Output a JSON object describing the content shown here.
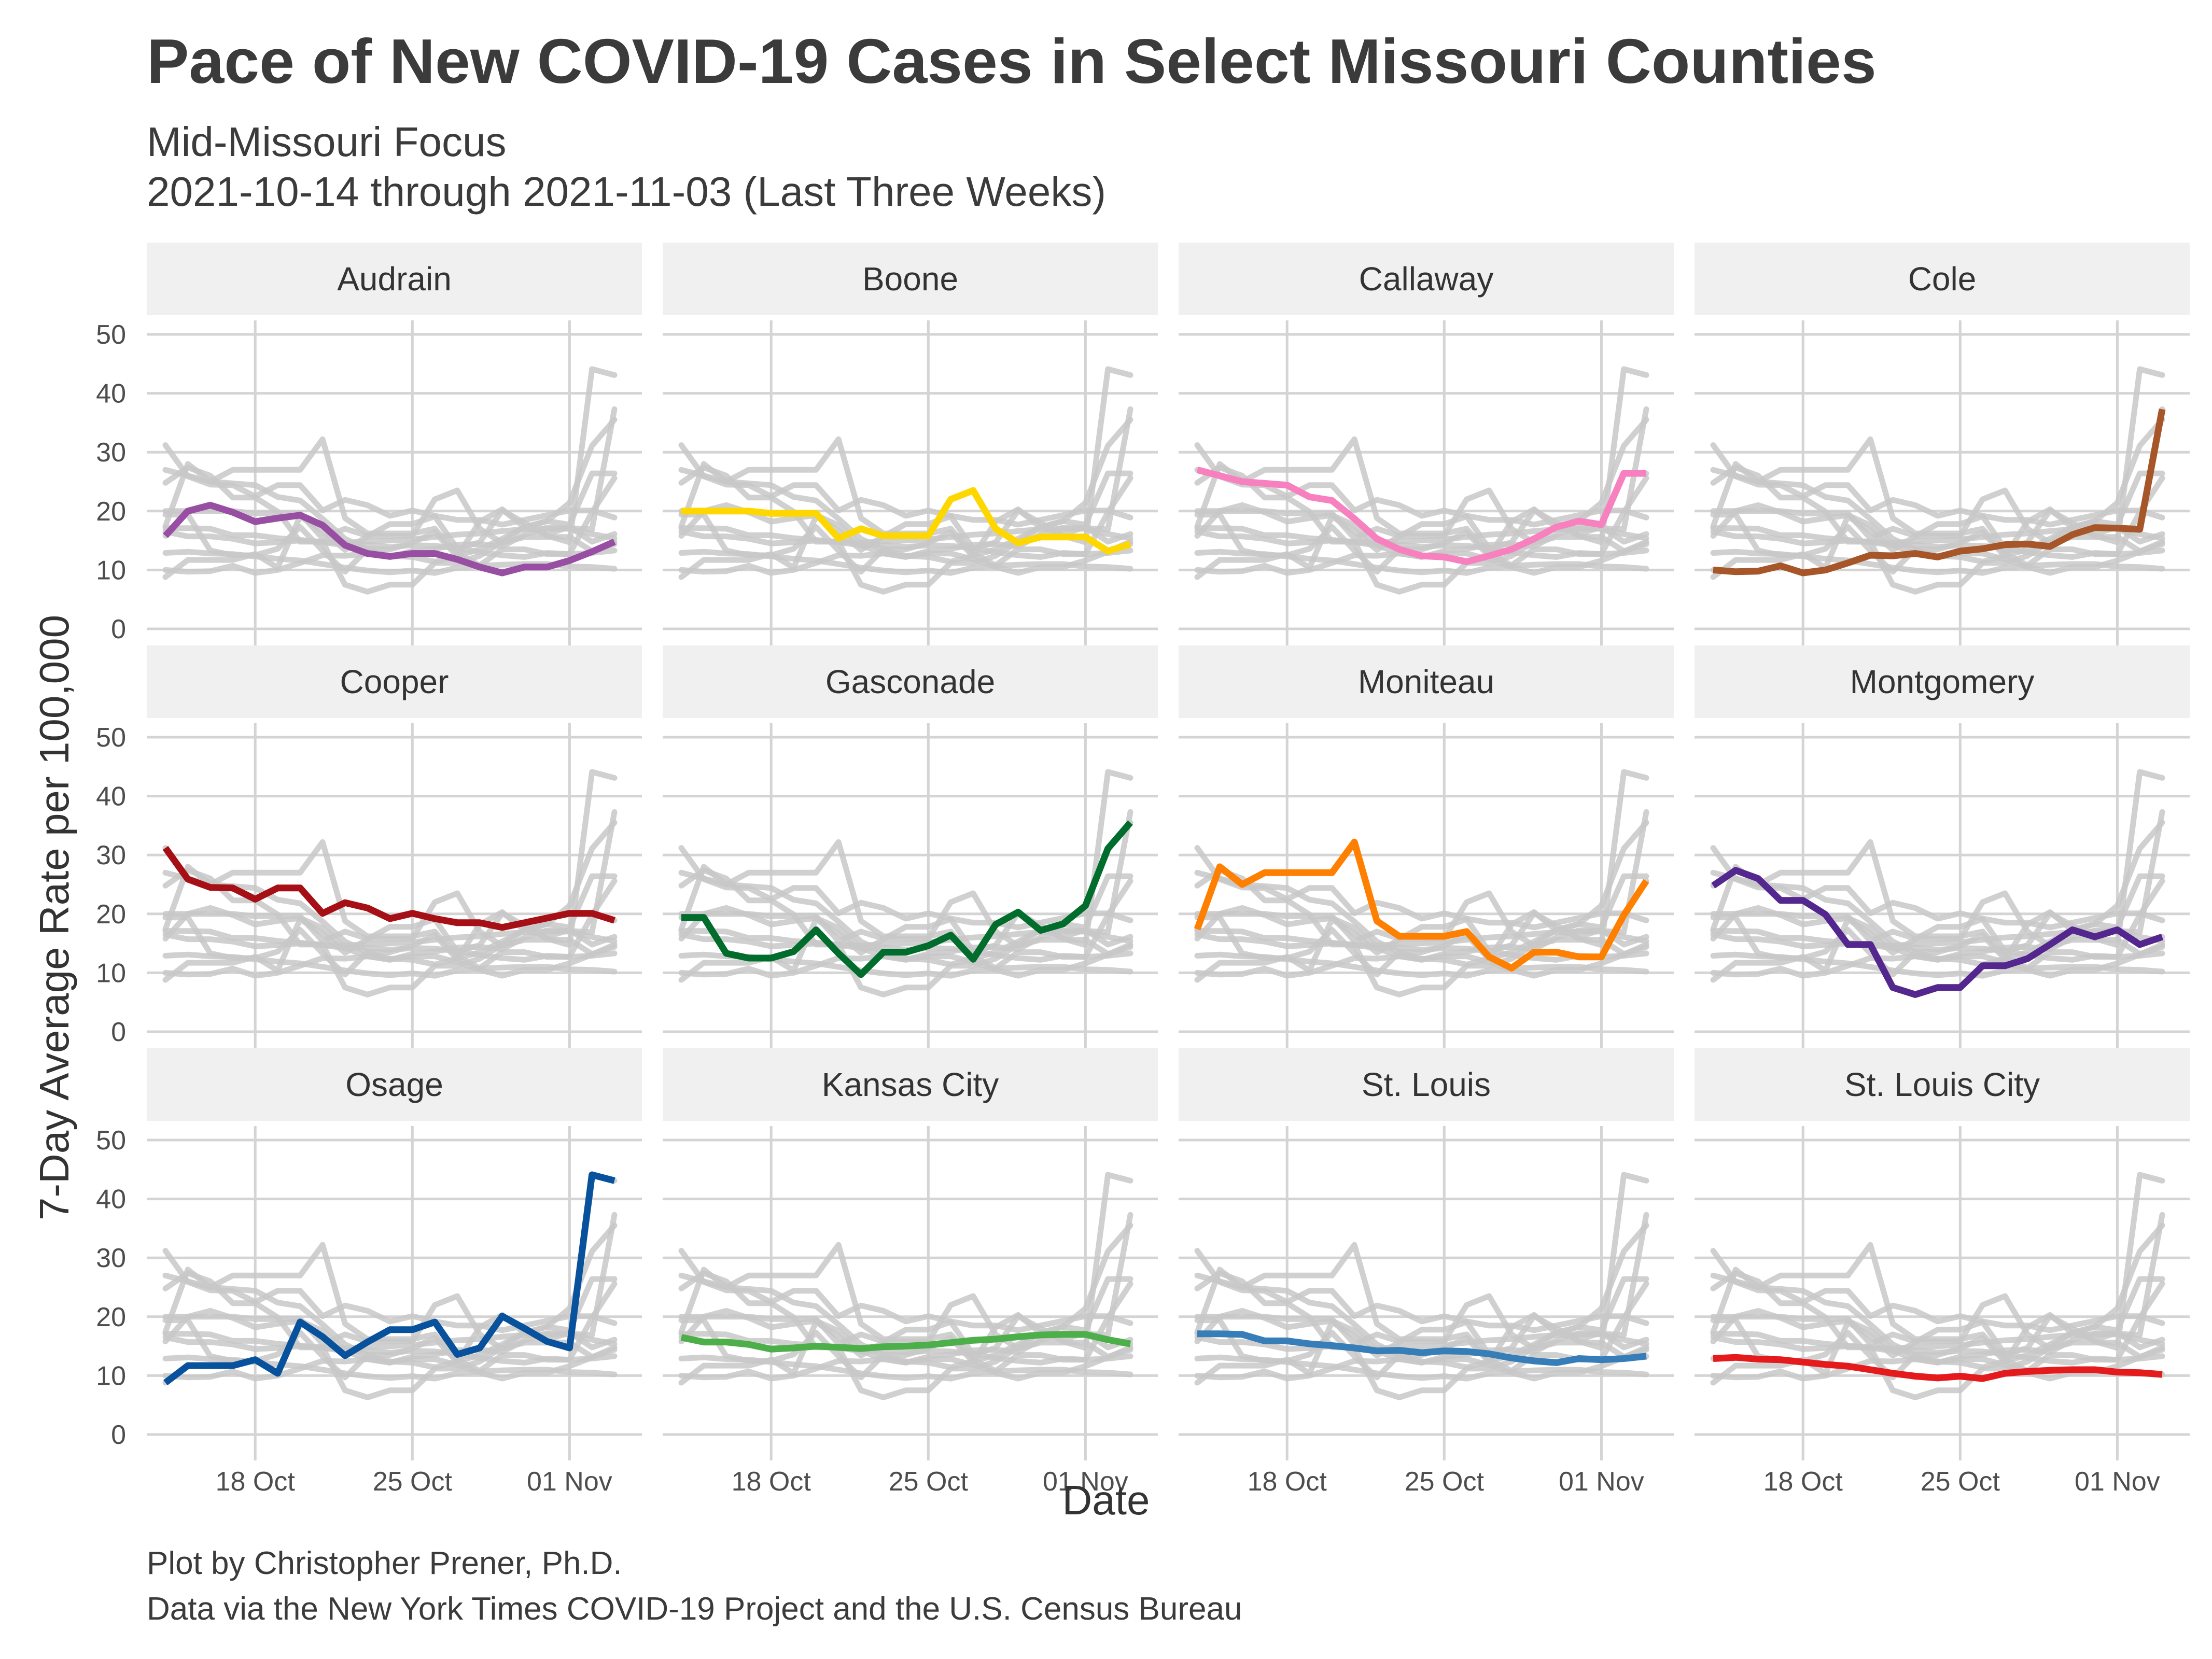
{
  "title": "Pace of New COVID-19 Cases in Select Missouri Counties",
  "subtitle": [
    "Mid-Missouri Focus",
    "2021-10-14 through 2021-11-03 (Last Three Weeks)"
  ],
  "caption": [
    "Plot by Christopher Prener, Ph.D.",
    "Data via the New York Times COVID-19 Project and the U.S. Census Bureau"
  ],
  "chart_data": {
    "type": "line",
    "facets": "small multiples, 3 rows x 4 columns, shared axes; each panel highlights one county in color over gray lines of all counties",
    "xlabel": "Date",
    "ylabel": "7-Day Average Rate per 100,000",
    "x": [
      "2021-10-14",
      "2021-10-15",
      "2021-10-16",
      "2021-10-17",
      "2021-10-18",
      "2021-10-19",
      "2021-10-20",
      "2021-10-21",
      "2021-10-22",
      "2021-10-23",
      "2021-10-24",
      "2021-10-25",
      "2021-10-26",
      "2021-10-27",
      "2021-10-28",
      "2021-10-29",
      "2021-10-30",
      "2021-10-31",
      "2021-11-01",
      "2021-11-02",
      "2021-11-03"
    ],
    "xticks": [
      "18 Oct",
      "25 Oct",
      "01 Nov"
    ],
    "xtick_dates": [
      "2021-10-18",
      "2021-10-25",
      "2021-11-01"
    ],
    "ylim": [
      0,
      50
    ],
    "yticks": [
      0,
      10,
      20,
      30,
      40,
      50
    ],
    "grid": true,
    "background_series_color": "#c8c8c8",
    "series": [
      {
        "name": "Audrain",
        "color": "#984ea3",
        "values": [
          15.8,
          20.0,
          21.0,
          19.8,
          18.2,
          18.8,
          19.3,
          17.6,
          14.2,
          12.8,
          12.3,
          12.8,
          12.8,
          11.8,
          10.5,
          9.5,
          10.5,
          10.5,
          11.6,
          13.1,
          14.8
        ]
      },
      {
        "name": "Boone",
        "color": "#ffd700",
        "values": [
          20.0,
          20.0,
          20.0,
          20.0,
          19.6,
          19.6,
          19.6,
          15.4,
          17.0,
          15.8,
          15.8,
          15.8,
          22.0,
          23.5,
          17.0,
          14.6,
          15.6,
          15.6,
          15.6,
          13.2,
          14.4
        ]
      },
      {
        "name": "Callaway",
        "color": "#f781bf",
        "values": [
          27.0,
          26.0,
          25.0,
          24.7,
          24.4,
          22.4,
          21.8,
          18.7,
          15.3,
          13.5,
          12.4,
          12.2,
          11.4,
          12.4,
          13.5,
          15.3,
          17.3,
          18.3,
          17.7,
          26.4,
          26.4
        ]
      },
      {
        "name": "Cole",
        "color": "#a65628",
        "values": [
          10.0,
          9.7,
          9.8,
          10.7,
          9.5,
          10.0,
          11.2,
          12.5,
          12.4,
          12.8,
          12.2,
          13.2,
          13.6,
          14.3,
          14.4,
          14.0,
          16.0,
          17.2,
          17.1,
          16.9,
          37.3
        ]
      },
      {
        "name": "Cooper",
        "color": "#a50f15",
        "values": [
          31.2,
          25.9,
          24.5,
          24.4,
          22.5,
          24.4,
          24.4,
          20.1,
          21.9,
          21.0,
          19.2,
          20.1,
          19.2,
          18.5,
          18.5,
          17.7,
          18.5,
          19.3,
          20.1,
          20.1,
          18.9
        ]
      },
      {
        "name": "Gasconade",
        "color": "#006d2c",
        "values": [
          19.4,
          19.4,
          13.3,
          12.5,
          12.5,
          13.6,
          17.3,
          13.3,
          9.7,
          13.5,
          13.5,
          14.6,
          16.4,
          12.3,
          18.2,
          20.3,
          17.2,
          18.3,
          21.4,
          31.1,
          35.5
        ]
      },
      {
        "name": "Moniteau",
        "color": "#ff7f00",
        "values": [
          17.4,
          28.0,
          25.0,
          27.0,
          27.0,
          27.0,
          27.0,
          32.2,
          18.8,
          16.2,
          16.2,
          16.2,
          17.0,
          12.7,
          10.8,
          13.5,
          13.5,
          12.7,
          12.7,
          19.8,
          25.6
        ]
      },
      {
        "name": "Montgomery",
        "color": "#54278f",
        "values": [
          24.8,
          27.4,
          26.0,
          22.3,
          22.3,
          19.9,
          14.8,
          14.8,
          7.5,
          6.3,
          7.5,
          7.5,
          11.2,
          11.2,
          12.4,
          14.8,
          17.3,
          16.1,
          17.3,
          14.8,
          16.1
        ]
      },
      {
        "name": "Osage",
        "color": "#08519c",
        "values": [
          8.8,
          11.7,
          11.7,
          11.7,
          12.7,
          10.4,
          19.1,
          16.6,
          13.4,
          15.7,
          17.8,
          17.8,
          19.1,
          13.6,
          14.7,
          20.1,
          18.0,
          15.8,
          14.7,
          44.1,
          43.1
        ]
      },
      {
        "name": "Kansas City",
        "color": "#4daf4a",
        "values": [
          16.5,
          15.7,
          15.7,
          15.3,
          14.5,
          14.7,
          15.0,
          14.8,
          14.6,
          14.9,
          15.0,
          15.2,
          15.6,
          16.0,
          16.2,
          16.6,
          16.9,
          17.0,
          17.0,
          16.1,
          15.4
        ]
      },
      {
        "name": "St. Louis",
        "color": "#377eb8",
        "values": [
          17.1,
          17.1,
          17.0,
          15.9,
          15.9,
          15.4,
          15.1,
          14.7,
          14.2,
          14.3,
          13.9,
          14.2,
          14.1,
          13.7,
          13.0,
          12.5,
          12.2,
          12.9,
          12.7,
          12.9,
          13.3
        ]
      },
      {
        "name": "St. Louis City",
        "color": "#e41a1c",
        "values": [
          12.9,
          13.1,
          12.8,
          12.7,
          12.3,
          11.9,
          11.6,
          11.0,
          10.4,
          9.9,
          9.6,
          9.9,
          9.5,
          10.4,
          10.7,
          10.9,
          11.0,
          11.0,
          10.6,
          10.5,
          10.2
        ]
      }
    ]
  }
}
